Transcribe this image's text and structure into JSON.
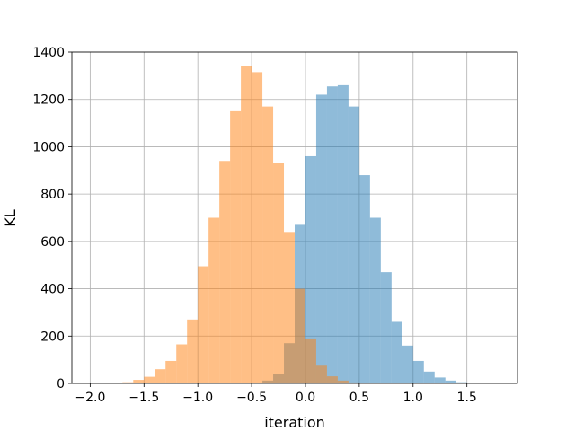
{
  "chart_data": {
    "type": "histogram",
    "xlabel": "iteration",
    "ylabel": "KL",
    "xlim": [
      -2.17,
      1.97
    ],
    "ylim": [
      0,
      1400
    ],
    "xticks": [
      -2.0,
      -1.5,
      -1.0,
      -0.5,
      0.0,
      0.5,
      1.0,
      1.5
    ],
    "xtick_labels": [
      "−2.0",
      "−1.5",
      "−1.0",
      "−0.5",
      "0.0",
      "0.5",
      "1.0",
      "1.5"
    ],
    "yticks": [
      0,
      200,
      400,
      600,
      800,
      1000,
      1200,
      1400
    ],
    "ytick_labels": [
      "0",
      "200",
      "400",
      "600",
      "800",
      "1000",
      "1200",
      "1400"
    ],
    "grid": true,
    "series": [
      {
        "color": "#1f77b4",
        "opacity": 0.5,
        "bins": [
          {
            "x0": -0.5,
            "x1": -0.4,
            "count": 3
          },
          {
            "x0": -0.4,
            "x1": -0.3,
            "count": 12
          },
          {
            "x0": -0.3,
            "x1": -0.2,
            "count": 40
          },
          {
            "x0": -0.2,
            "x1": -0.1,
            "count": 170
          },
          {
            "x0": -0.1,
            "x1": 0.0,
            "count": 670
          },
          {
            "x0": 0.0,
            "x1": 0.1,
            "count": 960
          },
          {
            "x0": 0.1,
            "x1": 0.2,
            "count": 1220
          },
          {
            "x0": 0.2,
            "x1": 0.3,
            "count": 1255
          },
          {
            "x0": 0.3,
            "x1": 0.4,
            "count": 1260
          },
          {
            "x0": 0.4,
            "x1": 0.5,
            "count": 1170
          },
          {
            "x0": 0.5,
            "x1": 0.6,
            "count": 880
          },
          {
            "x0": 0.6,
            "x1": 0.7,
            "count": 700
          },
          {
            "x0": 0.7,
            "x1": 0.8,
            "count": 470
          },
          {
            "x0": 0.8,
            "x1": 0.9,
            "count": 260
          },
          {
            "x0": 0.9,
            "x1": 1.0,
            "count": 160
          },
          {
            "x0": 1.0,
            "x1": 1.1,
            "count": 95
          },
          {
            "x0": 1.1,
            "x1": 1.2,
            "count": 50
          },
          {
            "x0": 1.2,
            "x1": 1.3,
            "count": 25
          },
          {
            "x0": 1.3,
            "x1": 1.4,
            "count": 12
          },
          {
            "x0": 1.4,
            "x1": 1.5,
            "count": 5
          },
          {
            "x0": 1.5,
            "x1": 1.6,
            "count": 2
          }
        ]
      },
      {
        "color": "#ff7f0e",
        "opacity": 0.5,
        "bins": [
          {
            "x0": -1.9,
            "x1": -1.8,
            "count": 1
          },
          {
            "x0": -1.8,
            "x1": -1.7,
            "count": 2
          },
          {
            "x0": -1.7,
            "x1": -1.6,
            "count": 5
          },
          {
            "x0": -1.6,
            "x1": -1.5,
            "count": 15
          },
          {
            "x0": -1.5,
            "x1": -1.4,
            "count": 28
          },
          {
            "x0": -1.4,
            "x1": -1.3,
            "count": 60
          },
          {
            "x0": -1.3,
            "x1": -1.2,
            "count": 95
          },
          {
            "x0": -1.2,
            "x1": -1.1,
            "count": 165
          },
          {
            "x0": -1.1,
            "x1": -1.0,
            "count": 270
          },
          {
            "x0": -1.0,
            "x1": -0.9,
            "count": 495
          },
          {
            "x0": -0.9,
            "x1": -0.8,
            "count": 700
          },
          {
            "x0": -0.8,
            "x1": -0.7,
            "count": 940
          },
          {
            "x0": -0.7,
            "x1": -0.6,
            "count": 1150
          },
          {
            "x0": -0.6,
            "x1": -0.5,
            "count": 1340
          },
          {
            "x0": -0.5,
            "x1": -0.4,
            "count": 1315
          },
          {
            "x0": -0.4,
            "x1": -0.3,
            "count": 1170
          },
          {
            "x0": -0.3,
            "x1": -0.2,
            "count": 930
          },
          {
            "x0": -0.2,
            "x1": -0.1,
            "count": 640
          },
          {
            "x0": -0.1,
            "x1": 0.0,
            "count": 400
          },
          {
            "x0": 0.0,
            "x1": 0.1,
            "count": 190
          },
          {
            "x0": 0.1,
            "x1": 0.2,
            "count": 75
          },
          {
            "x0": 0.2,
            "x1": 0.3,
            "count": 30
          },
          {
            "x0": 0.3,
            "x1": 0.4,
            "count": 12
          },
          {
            "x0": 0.4,
            "x1": 0.5,
            "count": 4
          }
        ]
      }
    ]
  }
}
